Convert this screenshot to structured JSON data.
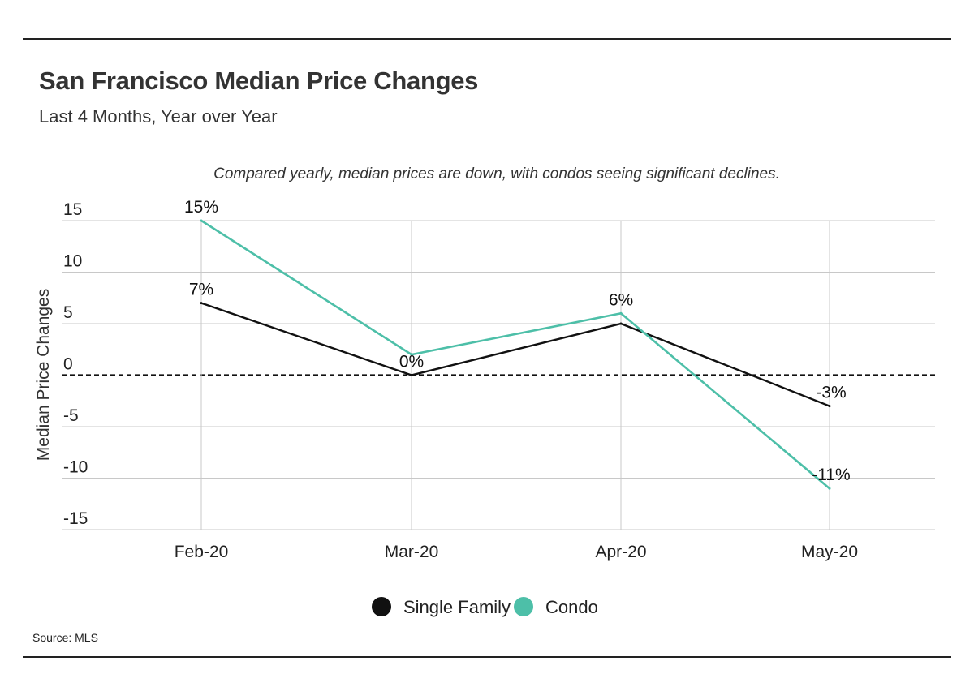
{
  "header": {
    "title": "San Francisco Median Price Changes",
    "subtitle": "Last 4 Months, Year over Year"
  },
  "footer": {
    "source": "Source:  MLS"
  },
  "chart_data": {
    "type": "line",
    "annotation": "Compared yearly, median prices are down, with condos seeing significant declines.",
    "ylabel": "Median Price Changes",
    "xlabel": "",
    "categories": [
      "Feb-20",
      "Mar-20",
      "Apr-20",
      "May-20"
    ],
    "ylim": [
      -15,
      15
    ],
    "yticks": [
      15,
      10,
      5,
      0,
      -5,
      -10,
      -15
    ],
    "grid": true,
    "zero_line": "dashed",
    "legend_position": "bottom-center",
    "series": [
      {
        "name": "Single Family",
        "color": "#111111",
        "values": [
          7,
          0,
          5,
          -3
        ],
        "labels": [
          "7%",
          "0%",
          "",
          "-3%"
        ]
      },
      {
        "name": "Condo",
        "color": "#4dbfa8",
        "values": [
          15,
          2,
          6,
          -11
        ],
        "labels": [
          "15%",
          "",
          "6%",
          "-11%"
        ]
      }
    ]
  }
}
